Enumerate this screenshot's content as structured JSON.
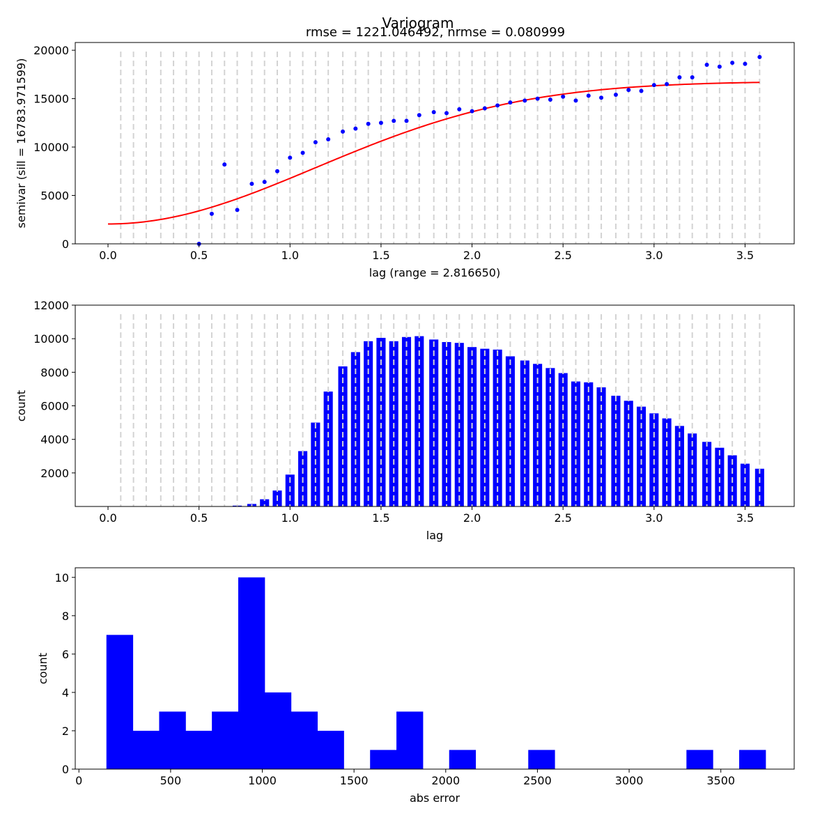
{
  "figure": {
    "suptitle": "Variogram",
    "title": "rmse = 1221.046492, nrmse = 0.080999"
  },
  "colors": {
    "points": "#0000ff",
    "model": "#ff0000",
    "bars": "#0000ff",
    "gridlines": "#d3d3d3"
  },
  "chart_data": [
    {
      "type": "scatter",
      "name": "variogram",
      "xlabel": "lag (range = 2.816650)",
      "ylabel": "semivar (sill = 16783.971599)",
      "xlim": [
        -0.18,
        3.77
      ],
      "ylim": [
        0,
        20800
      ],
      "xticks": [
        0.0,
        0.5,
        1.0,
        1.5,
        2.0,
        2.5,
        3.0,
        3.5
      ],
      "xtick_labels": [
        "0.0",
        "0.5",
        "1.0",
        "1.5",
        "2.0",
        "2.5",
        "3.0",
        "3.5"
      ],
      "yticks": [
        0,
        5000,
        10000,
        15000,
        20000
      ],
      "ytick_labels": [
        "0",
        "5000",
        "10000",
        "15000",
        "20000"
      ],
      "x": [
        0.5,
        0.57,
        0.64,
        0.71,
        0.79,
        0.86,
        0.93,
        1.0,
        1.07,
        1.14,
        1.21,
        1.29,
        1.36,
        1.43,
        1.5,
        1.57,
        1.64,
        1.71,
        1.79,
        1.86,
        1.93,
        2.0,
        2.07,
        2.14,
        2.21,
        2.29,
        2.36,
        2.43,
        2.5,
        2.57,
        2.64,
        2.71,
        2.79,
        2.86,
        2.93,
        3.0,
        3.07,
        3.14,
        3.21,
        3.29,
        3.36,
        3.43,
        3.5,
        3.58
      ],
      "y": [
        0,
        3100,
        8200,
        3500,
        6200,
        6400,
        7500,
        8900,
        9400,
        10500,
        10800,
        11600,
        11900,
        12400,
        12500,
        12700,
        12700,
        13300,
        13600,
        13500,
        13900,
        13700,
        14000,
        14300,
        14600,
        14800,
        15000,
        14900,
        15200,
        14800,
        15300,
        15100,
        15400,
        15900,
        15800,
        16400,
        16500,
        17200,
        17200,
        18500,
        18300,
        18700,
        18600,
        19300
      ],
      "model": {
        "nugget": 2050,
        "sill": 16783.971599,
        "range": 2.81665,
        "x_max": 3.58
      },
      "bin_edges": [
        0.07,
        0.14,
        0.21,
        0.29,
        0.36,
        0.43,
        0.5,
        0.57,
        0.64,
        0.71,
        0.79,
        0.86,
        0.93,
        1.0,
        1.07,
        1.14,
        1.21,
        1.29,
        1.36,
        1.43,
        1.5,
        1.57,
        1.64,
        1.71,
        1.79,
        1.86,
        1.93,
        2.0,
        2.07,
        2.14,
        2.21,
        2.29,
        2.36,
        2.43,
        2.5,
        2.57,
        2.64,
        2.71,
        2.79,
        2.86,
        2.93,
        3.0,
        3.07,
        3.14,
        3.21,
        3.29,
        3.36,
        3.43,
        3.5,
        3.58
      ]
    },
    {
      "type": "bar",
      "name": "lag-counts",
      "xlabel": "lag",
      "ylabel": "count",
      "xlim": [
        -0.18,
        3.77
      ],
      "ylim": [
        0,
        12000
      ],
      "xticks": [
        0.0,
        0.5,
        1.0,
        1.5,
        2.0,
        2.5,
        3.0,
        3.5
      ],
      "xtick_labels": [
        "0.0",
        "0.5",
        "1.0",
        "1.5",
        "2.0",
        "2.5",
        "3.0",
        "3.5"
      ],
      "yticks": [
        2000,
        4000,
        6000,
        8000,
        10000,
        12000
      ],
      "ytick_labels": [
        "2000",
        "4000",
        "6000",
        "8000",
        "10000",
        "12000"
      ],
      "x": [
        0.07,
        0.14,
        0.21,
        0.29,
        0.36,
        0.43,
        0.5,
        0.57,
        0.64,
        0.71,
        0.79,
        0.86,
        0.93,
        1.0,
        1.07,
        1.14,
        1.21,
        1.29,
        1.36,
        1.43,
        1.5,
        1.57,
        1.64,
        1.71,
        1.79,
        1.86,
        1.93,
        2.0,
        2.07,
        2.14,
        2.21,
        2.29,
        2.36,
        2.43,
        2.5,
        2.57,
        2.64,
        2.71,
        2.79,
        2.86,
        2.93,
        3.0,
        3.07,
        3.14,
        3.21,
        3.29,
        3.36,
        3.43,
        3.5,
        3.58
      ],
      "values": [
        0,
        0,
        0,
        0,
        0,
        0,
        0,
        10,
        20,
        50,
        150,
        430,
        950,
        1900,
        3300,
        5000,
        6850,
        8350,
        9200,
        9850,
        10050,
        9850,
        10100,
        10150,
        9950,
        9800,
        9750,
        9500,
        9400,
        9350,
        8950,
        8700,
        8500,
        8250,
        7950,
        7450,
        7400,
        7100,
        6600,
        6300,
        5950,
        5550,
        5250,
        4800,
        4350,
        3850,
        3500,
        3050,
        2550,
        2250
      ],
      "bin_width": 0.0716
    },
    {
      "type": "bar",
      "name": "abs-error-histogram",
      "xlabel": "abs error",
      "ylabel": "count",
      "xlim": [
        -20,
        3900
      ],
      "ylim": [
        0,
        10.5
      ],
      "xticks": [
        0,
        500,
        1000,
        1500,
        2000,
        2500,
        3000,
        3500
      ],
      "xtick_labels": [
        "0",
        "500",
        "1000",
        "1500",
        "2000",
        "2500",
        "3000",
        "3500"
      ],
      "yticks": [
        0,
        2,
        4,
        6,
        8,
        10
      ],
      "ytick_labels": [
        "0",
        "2",
        "4",
        "6",
        "8",
        "10"
      ],
      "bin_edges": [
        150,
        293.75,
        437.5,
        581.25,
        725,
        868.75,
        1012.5,
        1156.25,
        1300,
        1443.75,
        1587.5,
        1731.25,
        1875,
        2018.75,
        2162.5,
        2306.25,
        2450,
        2593.75,
        2737.5,
        2881.25,
        3025,
        3168.75,
        3312.5,
        3456.25,
        3600,
        3743.75
      ],
      "values": [
        7,
        2,
        3,
        2,
        3,
        10,
        4,
        3,
        2,
        0,
        1,
        3,
        0,
        1,
        0,
        0,
        1,
        0,
        0,
        0,
        0,
        0,
        1,
        0,
        1
      ]
    }
  ]
}
